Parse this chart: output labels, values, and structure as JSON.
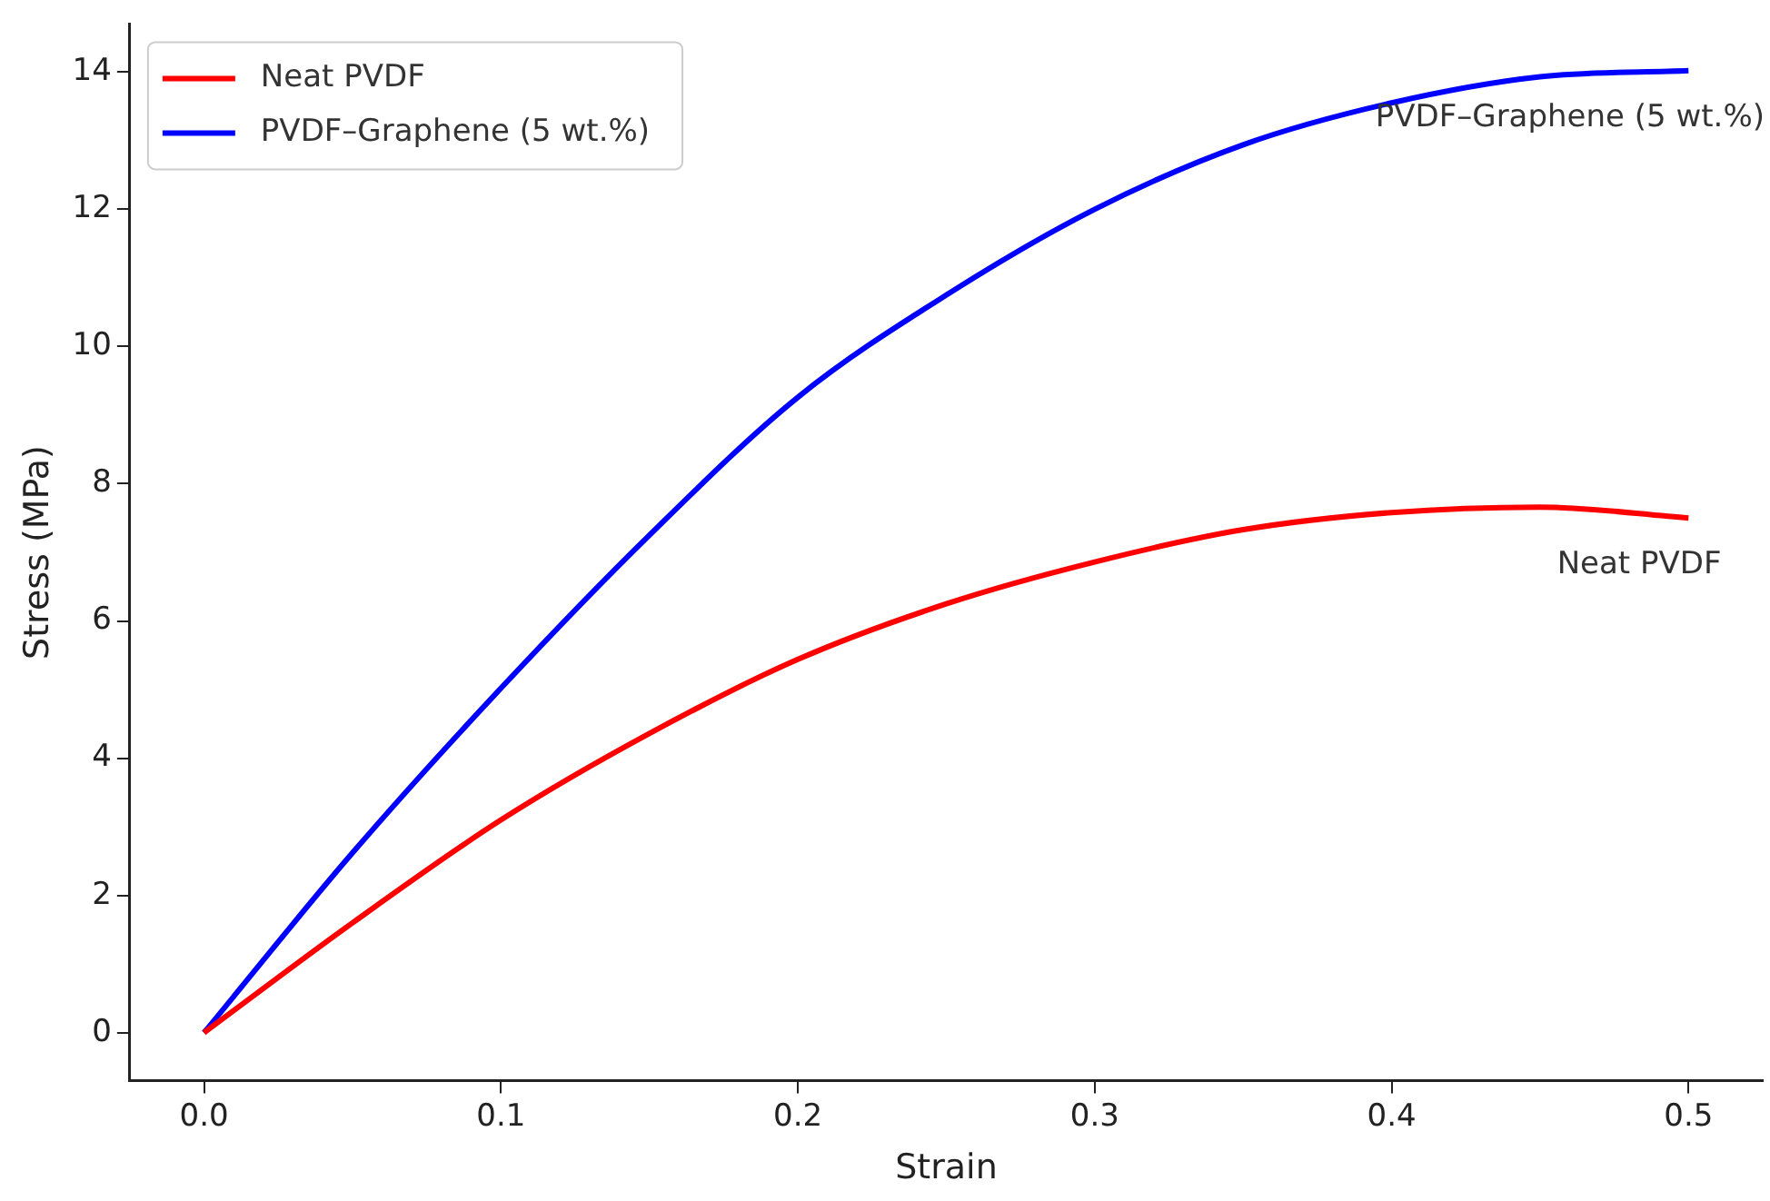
{
  "chart_data": {
    "type": "line",
    "xlabel": "Strain",
    "ylabel": "Stress (MPa)",
    "xlim": [
      -0.025,
      0.525
    ],
    "ylim": [
      -0.7,
      14.7
    ],
    "xticks": [
      {
        "value": 0,
        "label": "0.0"
      },
      0.1,
      0.2,
      0.3,
      0.4,
      0.5
    ],
    "yticks": [
      0,
      2,
      4,
      6,
      8,
      10,
      12,
      14
    ],
    "grid": false,
    "legend": "top left",
    "marker": "none",
    "line_style": "solid",
    "x": [
      0,
      0.05,
      0.1,
      0.15,
      0.2,
      0.25,
      0.3,
      0.35,
      0.4,
      0.45,
      0.5
    ],
    "series": [
      {
        "name": "Neat PVDF",
        "color": "#ff0000",
        "values": [
          0,
          1.6,
          3.1,
          4.36,
          5.44,
          6.25,
          6.86,
          7.33,
          7.58,
          7.66,
          7.5
        ]
      },
      {
        "name": "PVDF–Graphene (5 wt.%)",
        "color": "#0000ff",
        "values": [
          0,
          2.62,
          5.02,
          7.25,
          9.26,
          10.75,
          12.0,
          12.94,
          13.55,
          13.93,
          14.02
        ]
      }
    ],
    "annotations": [
      "Neat PVDF",
      "PVDF–Graphene (5 wt.%)"
    ]
  }
}
